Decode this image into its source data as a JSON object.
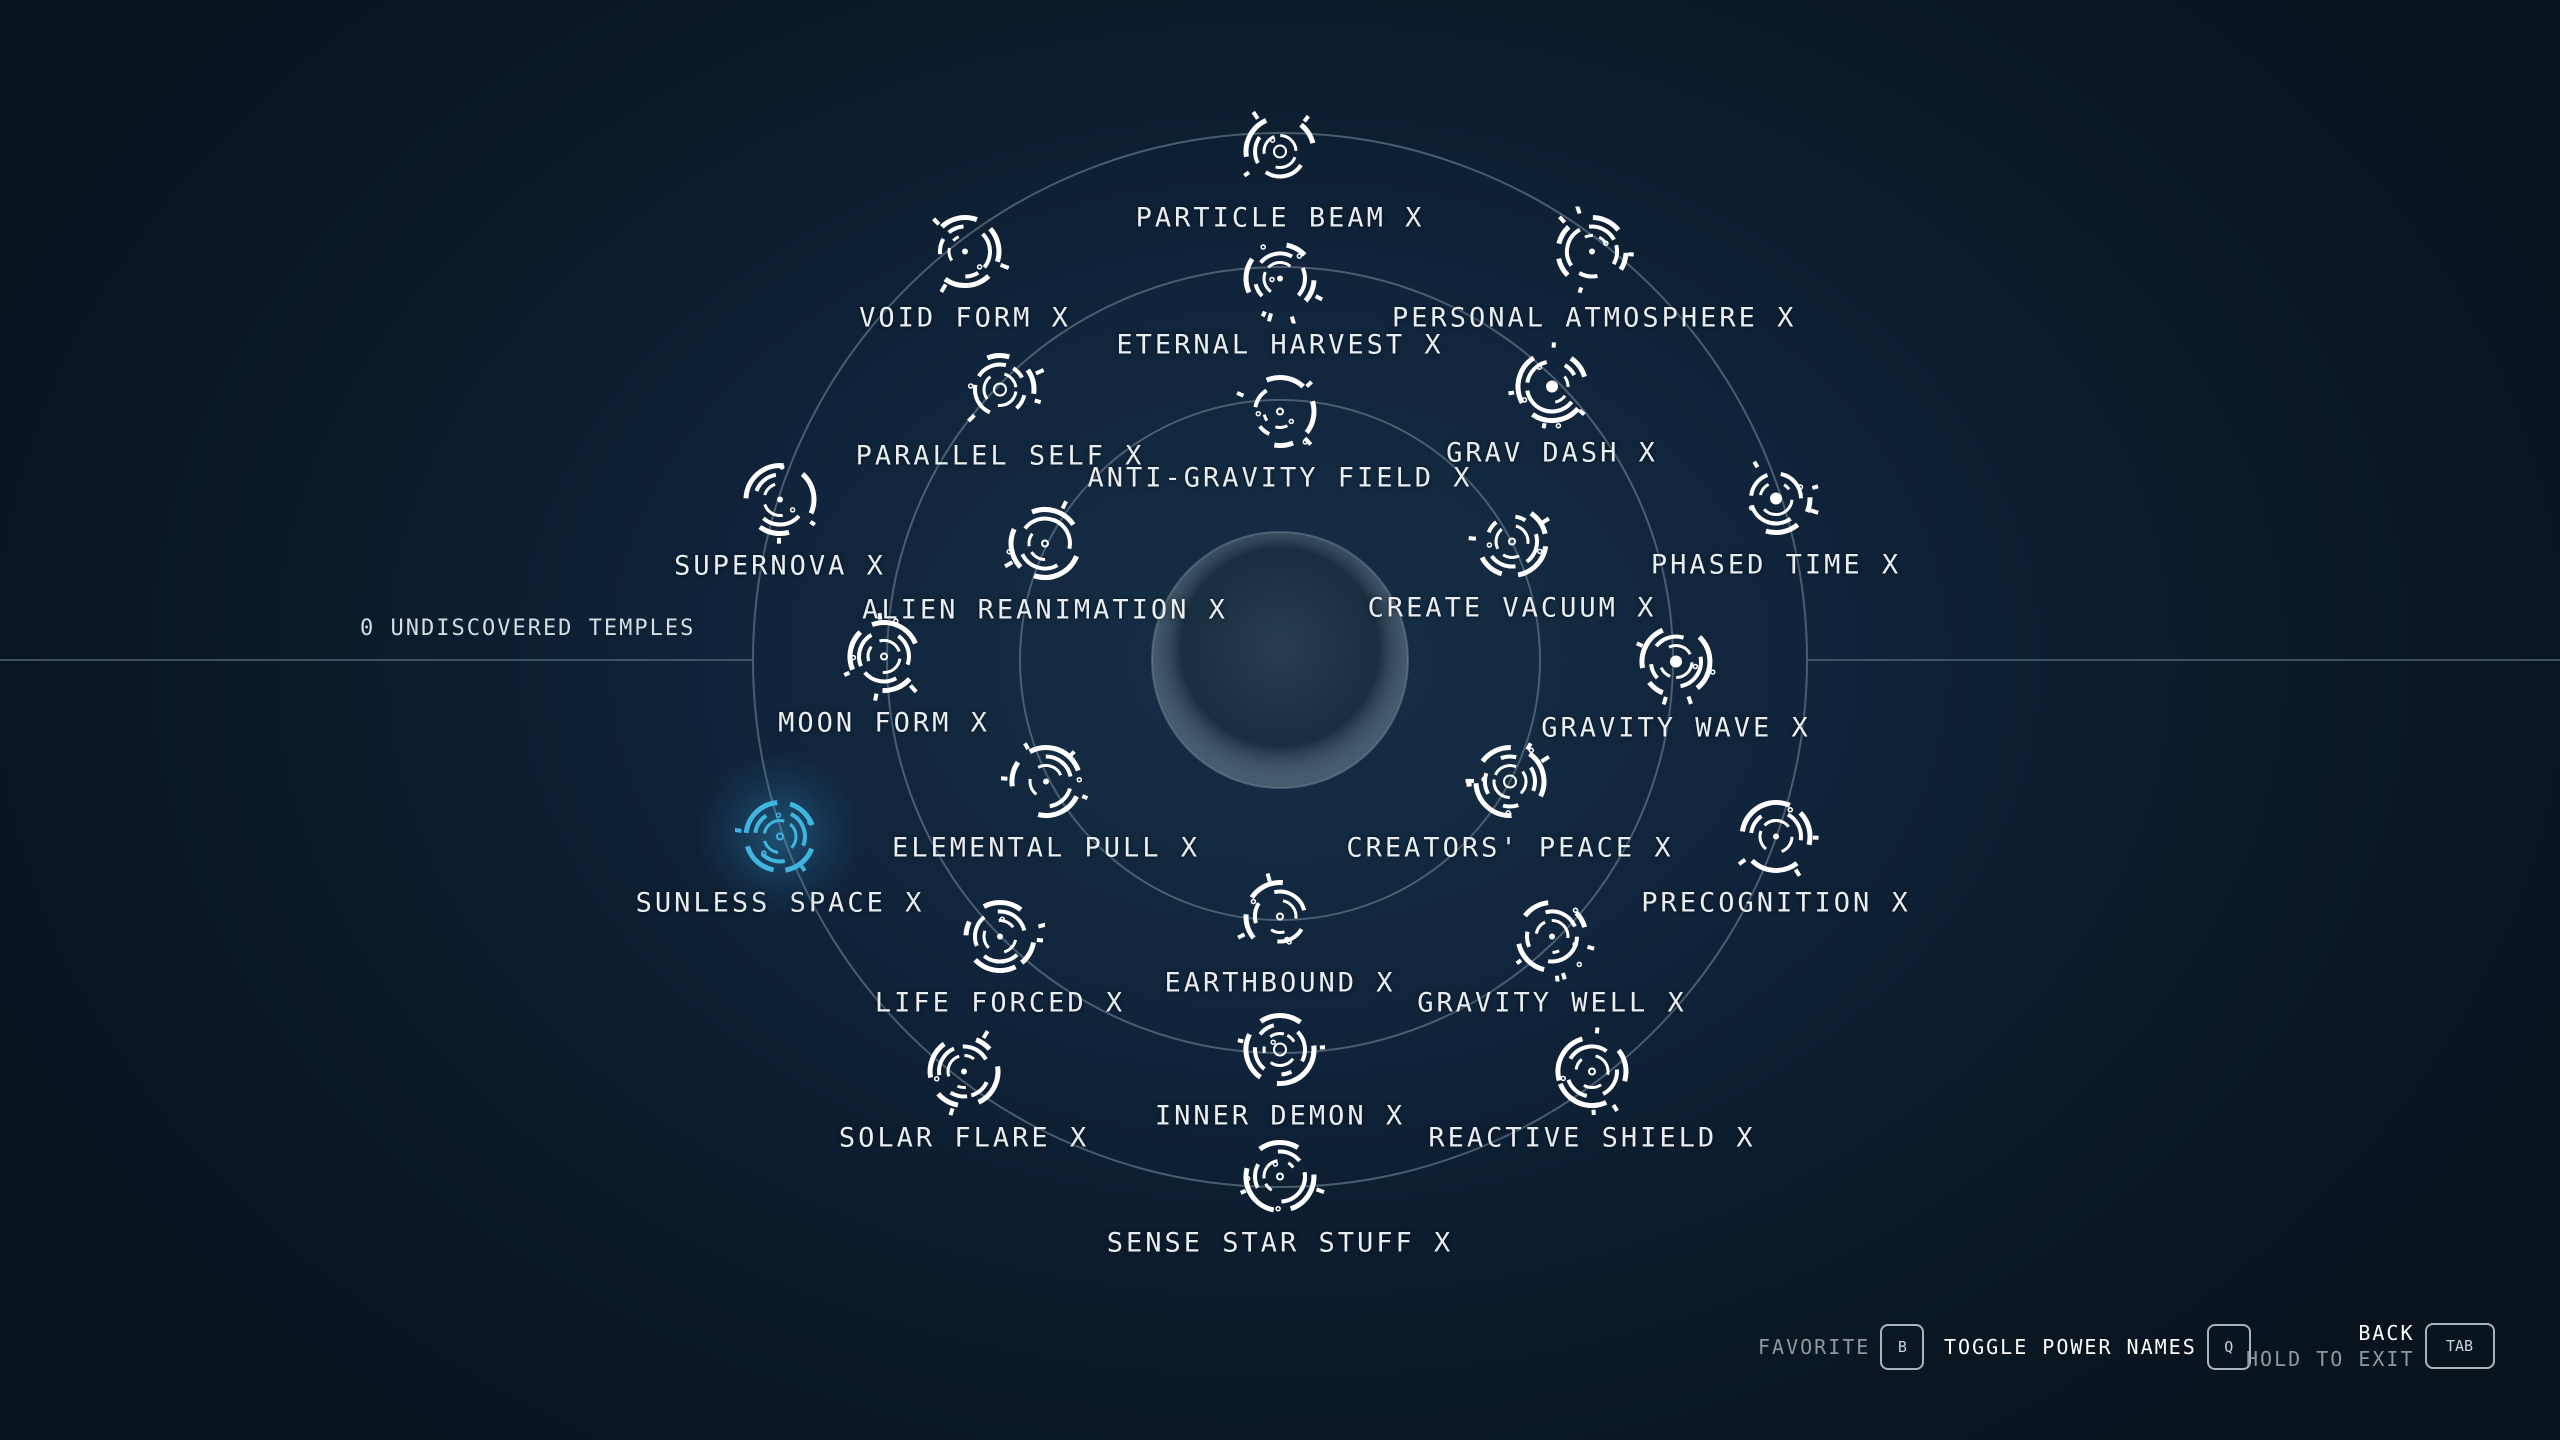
{
  "temples_text": "0 UNDISCOVERED TEMPLES",
  "icon_color": "#ffffff",
  "selected_color": "#3fb6e0",
  "ring_color": "#5f7284",
  "powers": [
    {
      "id": "particle-beam",
      "label": "PARTICLE BEAM X",
      "icon": "particle-beam-icon",
      "selected": false
    },
    {
      "id": "void-form",
      "label": "VOID FORM X",
      "icon": "void-form-icon",
      "selected": false
    },
    {
      "id": "eternal-harvest",
      "label": "ETERNAL HARVEST X",
      "icon": "eternal-harvest-icon",
      "selected": false
    },
    {
      "id": "personal-atmosphere",
      "label": "PERSONAL ATMOSPHERE X",
      "icon": "personal-atmosphere-icon",
      "selected": false
    },
    {
      "id": "parallel-self",
      "label": "PARALLEL SELF X",
      "icon": "parallel-self-icon",
      "selected": false
    },
    {
      "id": "grav-dash",
      "label": "GRAV DASH X",
      "icon": "grav-dash-icon",
      "selected": false
    },
    {
      "id": "anti-gravity-field",
      "label": "ANTI-GRAVITY FIELD X",
      "icon": "anti-gravity-field-icon",
      "selected": false
    },
    {
      "id": "supernova",
      "label": "SUPERNOVA X",
      "icon": "supernova-icon",
      "selected": false
    },
    {
      "id": "phased-time",
      "label": "PHASED TIME X",
      "icon": "phased-time-icon",
      "selected": false
    },
    {
      "id": "alien-reanimation",
      "label": "ALIEN REANIMATION X",
      "icon": "alien-reanimation-icon",
      "selected": false
    },
    {
      "id": "create-vacuum",
      "label": "CREATE VACUUM X",
      "icon": "create-vacuum-icon",
      "selected": false
    },
    {
      "id": "moon-form",
      "label": "MOON FORM X",
      "icon": "moon-form-icon",
      "selected": false
    },
    {
      "id": "gravity-wave",
      "label": "GRAVITY WAVE X",
      "icon": "gravity-wave-icon",
      "selected": false
    },
    {
      "id": "elemental-pull",
      "label": "ELEMENTAL PULL X",
      "icon": "elemental-pull-icon",
      "selected": false
    },
    {
      "id": "creators-peace",
      "label": "CREATORS' PEACE X",
      "icon": "creators-peace-icon",
      "selected": false
    },
    {
      "id": "sunless-space",
      "label": "SUNLESS SPACE X",
      "icon": "sunless-space-icon",
      "selected": true
    },
    {
      "id": "precognition",
      "label": "PRECOGNITION X",
      "icon": "precognition-icon",
      "selected": false
    },
    {
      "id": "earthbound",
      "label": "EARTHBOUND X",
      "icon": "earthbound-icon",
      "selected": false
    },
    {
      "id": "life-forced",
      "label": "LIFE FORCED X",
      "icon": "life-forced-icon",
      "selected": false
    },
    {
      "id": "gravity-well",
      "label": "GRAVITY WELL X",
      "icon": "gravity-well-icon",
      "selected": false
    },
    {
      "id": "inner-demon",
      "label": "INNER DEMON X",
      "icon": "inner-demon-icon",
      "selected": false
    },
    {
      "id": "solar-flare",
      "label": "SOLAR FLARE X",
      "icon": "solar-flare-icon",
      "selected": false
    },
    {
      "id": "reactive-shield",
      "label": "REACTIVE SHIELD X",
      "icon": "reactive-shield-icon",
      "selected": false
    },
    {
      "id": "sense-star-stuff",
      "label": "SENSE STAR STUFF X",
      "icon": "sense-star-stuff-icon",
      "selected": false
    }
  ],
  "footer": {
    "favorite_label": "FAVORITE",
    "favorite_key": "B",
    "toggle_label": "TOGGLE POWER NAMES",
    "toggle_key": "Q",
    "back_label": "BACK",
    "hold_label": "HOLD TO EXIT",
    "back_key": "TAB"
  }
}
